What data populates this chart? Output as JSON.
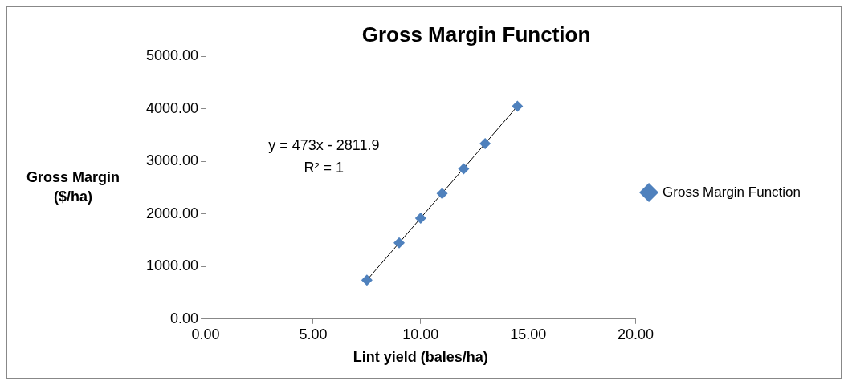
{
  "chart_data": {
    "type": "scatter",
    "title": "Gross Margin Function",
    "xlabel": "Lint yield (bales/ha)",
    "ylabel": "Gross Margin ($/ha)",
    "series": [
      {
        "name": "Gross Margin Function",
        "color": "#4f81bd",
        "x": [
          7.5,
          9,
          10,
          11,
          12,
          13,
          14.5
        ],
        "values": [
          740,
          1450,
          1920,
          2390,
          2860,
          3340,
          4050
        ],
        "marker": "diamond"
      },
      {
        "type": "line",
        "color": "#000000",
        "x": [
          7.5,
          14.5
        ],
        "values": [
          740,
          4050
        ],
        "marker": "none"
      }
    ],
    "annotations": [
      "y = 473x - 2811.9",
      "R² = 1"
    ],
    "xlim": [
      0,
      20
    ],
    "xticks": [
      {
        "value": 0,
        "label": "0.00"
      },
      {
        "value": 5,
        "label": "5.00"
      },
      {
        "value": 10,
        "label": "10.00"
      },
      {
        "value": 15,
        "label": "15.00"
      },
      {
        "value": 20,
        "label": "20.00"
      }
    ],
    "ylim": [
      0,
      5000
    ],
    "yticks": [
      {
        "value": 0,
        "label": "0.00"
      },
      {
        "value": 1000,
        "label": "1000.00"
      },
      {
        "value": 2000,
        "label": "2000.00"
      },
      {
        "value": 3000,
        "label": "3000.00"
      },
      {
        "value": 4000,
        "label": "4000.00"
      },
      {
        "value": 5000,
        "label": "5000.00"
      }
    ],
    "grid": false,
    "legend": "right"
  }
}
